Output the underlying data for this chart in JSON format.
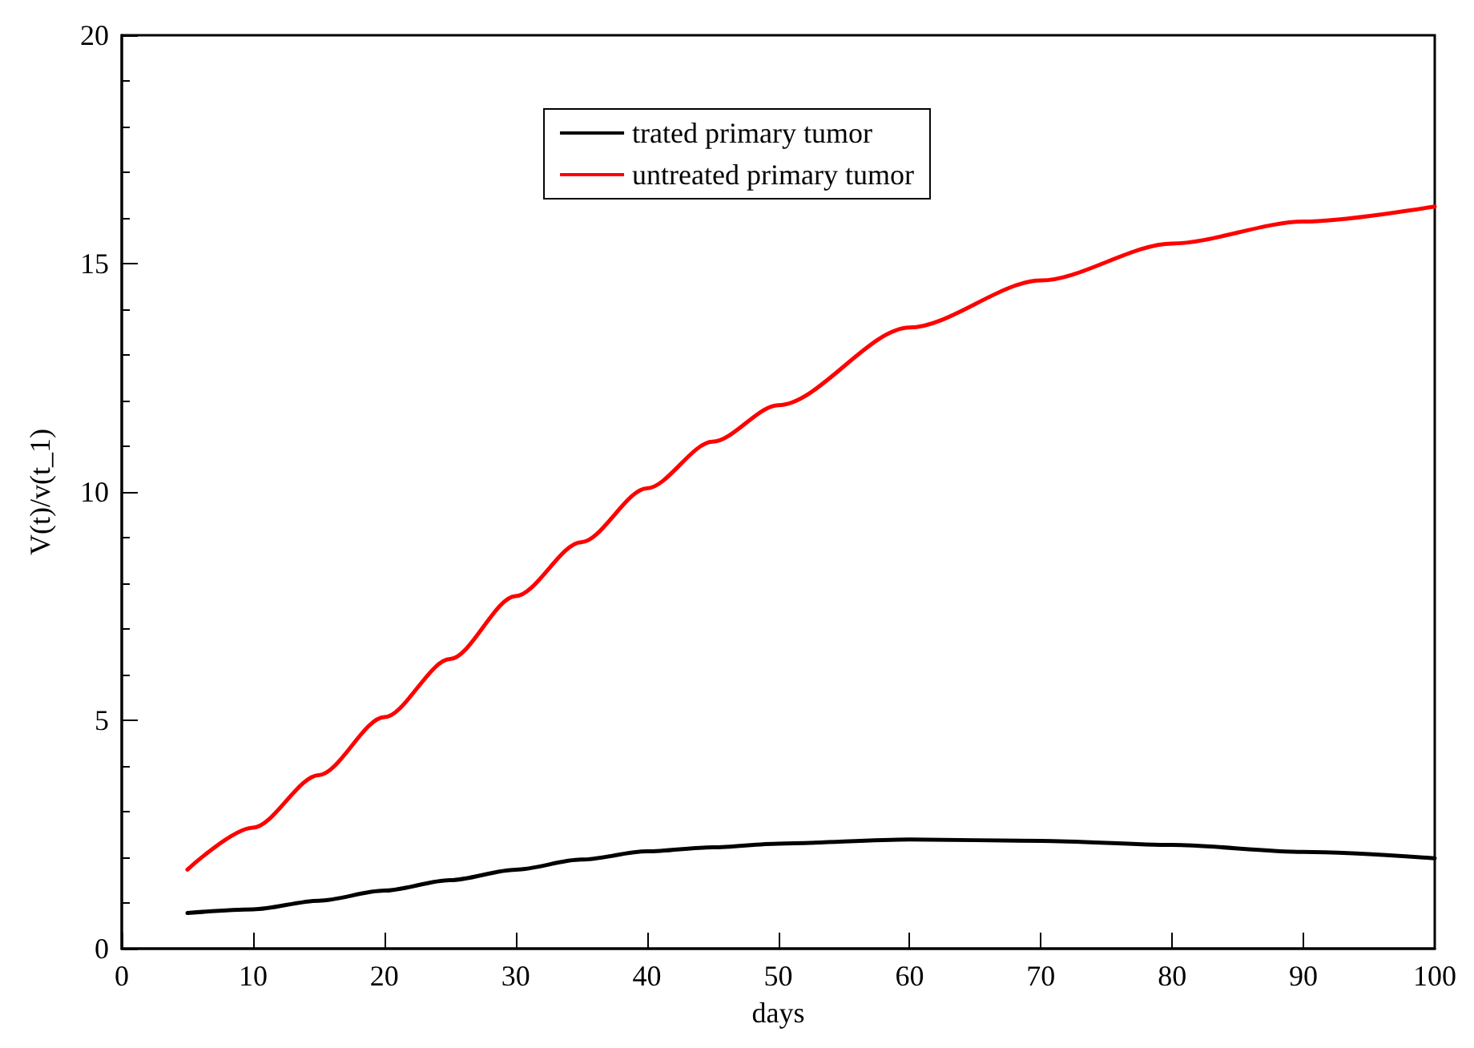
{
  "chart_data": {
    "type": "line",
    "xlabel": "days",
    "ylabel": "V(t)/v(t_1)",
    "x": [
      5,
      10,
      15,
      20,
      25,
      30,
      35,
      40,
      45,
      50,
      60,
      70,
      80,
      90,
      100
    ],
    "series": [
      {
        "name": "trated primary tumor",
        "color": "#000000",
        "values": [
          0.78,
          0.86,
          1.05,
          1.27,
          1.5,
          1.73,
          1.95,
          2.13,
          2.22,
          2.3,
          2.39,
          2.36,
          2.27,
          2.12,
          1.98
        ]
      },
      {
        "name": "untreated primary tumor",
        "color": "#ff0000",
        "values": [
          1.73,
          2.65,
          3.8,
          5.07,
          6.34,
          7.72,
          8.9,
          10.08,
          11.1,
          11.9,
          13.6,
          14.63,
          15.44,
          15.92,
          16.25
        ]
      }
    ],
    "xlim": [
      0,
      100
    ],
    "xticks": [
      0,
      10,
      20,
      30,
      40,
      50,
      60,
      70,
      80,
      90,
      100
    ],
    "ylim": [
      0,
      20
    ],
    "yticks": [
      0,
      5,
      10,
      15,
      20
    ],
    "grid": false,
    "legend": "top",
    "marker": "none",
    "line_style": "solid"
  }
}
